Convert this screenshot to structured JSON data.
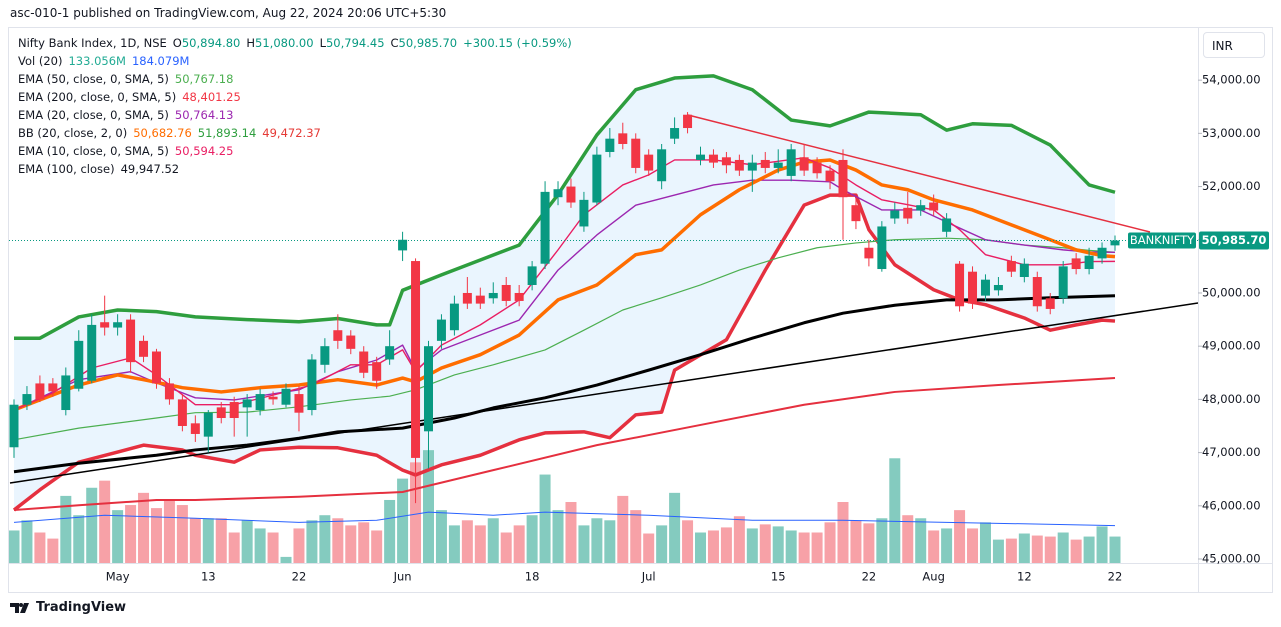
{
  "chart_data": {
    "type": "candlestick",
    "published": "asc-010-1 published on TradingView.com, Aug 22, 2024 20:06 UTC+5:30",
    "title": "Nifty Bank Index, 1D, NSE",
    "ohlc_legend": [
      {
        "key": "O",
        "value": "50,894.80"
      },
      {
        "key": "H",
        "value": "51,080.00"
      },
      {
        "key": "L",
        "value": "50,794.45"
      },
      {
        "key": "C",
        "value": "50,985.70"
      }
    ],
    "change": "+300.15 (+0.59%)",
    "currency": "INR",
    "footer": "TradingView",
    "legend": [
      {
        "name": "Vol (20)",
        "values": [
          {
            "text": "133.056M",
            "color": "#22ab94"
          },
          {
            "text": "184.079M",
            "color": "#2962ff"
          }
        ]
      },
      {
        "name": "EMA (50, close, 0, SMA, 5)",
        "values": [
          {
            "text": "50,767.18",
            "color": "#4caf50"
          }
        ]
      },
      {
        "name": "EMA (200, close, 0, SMA, 5)",
        "values": [
          {
            "text": "48,401.25",
            "color": "#f23645"
          }
        ]
      },
      {
        "name": "EMA (20, close, 0, SMA, 5)",
        "values": [
          {
            "text": "50,764.13",
            "color": "#9c27b0"
          }
        ]
      },
      {
        "name": "BB (20, close, 2, 0)",
        "values": [
          {
            "text": "50,682.76",
            "color": "#ff6d00"
          },
          {
            "text": "51,893.14",
            "color": "#2e9e3e"
          },
          {
            "text": "49,472.37",
            "color": "#e53935"
          }
        ]
      },
      {
        "name": "EMA (10, close, 0, SMA, 5)",
        "values": [
          {
            "text": "50,594.25",
            "color": "#e91e63"
          }
        ]
      },
      {
        "name": "EMA (100, close)",
        "values": [
          {
            "text": "49,947.52",
            "color": "#131722"
          }
        ]
      }
    ],
    "categories": [
      null,
      null,
      null,
      null,
      null,
      null,
      null,
      null,
      "May",
      null,
      null,
      null,
      null,
      null,
      null,
      "13",
      null,
      null,
      null,
      null,
      null,
      null,
      "22",
      null,
      null,
      null,
      null,
      null,
      null,
      null,
      "Jun",
      null,
      null,
      null,
      null,
      null,
      null,
      null,
      null,
      null,
      "18",
      null,
      null,
      null,
      null,
      null,
      null,
      null,
      null,
      "Jul",
      null,
      null,
      null,
      null,
      null,
      null,
      null,
      null,
      null,
      "15",
      null,
      null,
      null,
      null,
      null,
      null,
      "22",
      null,
      null,
      null,
      null,
      "Aug",
      null,
      null,
      null,
      null,
      null,
      null,
      "12",
      null,
      null,
      null,
      null,
      null,
      null,
      "22"
    ],
    "open": [
      47100,
      47900,
      48300,
      48300,
      47800,
      48200,
      48350,
      49450,
      49350,
      49500,
      49100,
      48900,
      48300,
      48000,
      47550,
      47300,
      47850,
      47950,
      47850,
      47800,
      48050,
      47900,
      48100,
      47800,
      48650,
      49300,
      49200,
      48900,
      48700,
      48750,
      50800,
      50600,
      47400,
      49100,
      49300,
      50000,
      49950,
      49900,
      50150,
      50000,
      50150,
      50550,
      51800,
      52000,
      51250,
      51700,
      52650,
      53000,
      52900,
      52600,
      52100,
      52900,
      53350,
      52500,
      52600,
      52550,
      52500,
      52300,
      52500,
      52350,
      52200,
      52550,
      52450,
      52300,
      52500,
      51650,
      50850,
      50450,
      51400,
      51600,
      51550,
      51700,
      51150,
      50550,
      50400,
      49950,
      50050,
      50600,
      50300,
      50300,
      49900,
      49900,
      50650,
      50450,
      50650,
      50894.8
    ],
    "high": [
      48000,
      48250,
      48450,
      48400,
      48600,
      49300,
      49600,
      49950,
      49600,
      49600,
      49200,
      48950,
      48400,
      48100,
      47700,
      47800,
      47950,
      48050,
      48100,
      48200,
      48150,
      48300,
      48250,
      48850,
      49150,
      49600,
      49300,
      49000,
      48800,
      49300,
      51150,
      50650,
      49100,
      49600,
      49950,
      50300,
      50100,
      50200,
      50300,
      50150,
      50600,
      52100,
      52100,
      52150,
      51900,
      52750,
      53100,
      53200,
      53000,
      52700,
      52800,
      53300,
      53400,
      52750,
      52700,
      52650,
      52600,
      52600,
      52650,
      52700,
      52800,
      52800,
      52550,
      52400,
      52700,
      51800,
      51000,
      51350,
      51700,
      51900,
      51750,
      51850,
      51500,
      50600,
      50500,
      50350,
      50300,
      50700,
      50650,
      50400,
      50000,
      50600,
      50750,
      50850,
      50950,
      51080
    ],
    "low": [
      46900,
      47800,
      47950,
      48050,
      47700,
      48150,
      48300,
      49200,
      49200,
      48500,
      48700,
      48200,
      47900,
      47400,
      47200,
      47000,
      47550,
      47300,
      47300,
      47700,
      47900,
      47850,
      47400,
      47700,
      48500,
      48950,
      48850,
      48400,
      48200,
      48650,
      50600,
      46050,
      46700,
      48950,
      49200,
      49700,
      49700,
      49800,
      49750,
      49750,
      50050,
      50450,
      51650,
      51600,
      51150,
      51650,
      52550,
      52700,
      52250,
      52200,
      51950,
      52800,
      53000,
      52400,
      52350,
      52250,
      52200,
      51900,
      52250,
      52250,
      52100,
      52200,
      52150,
      51950,
      51000,
      51200,
      50500,
      50400,
      51300,
      51300,
      51450,
      51450,
      51050,
      49650,
      49700,
      49850,
      49950,
      50300,
      50200,
      49650,
      49600,
      49800,
      50350,
      50350,
      50550,
      50794.45
    ],
    "close": [
      47900,
      48100,
      48000,
      48150,
      48450,
      49100,
      49400,
      49350,
      49450,
      48700,
      48800,
      48300,
      48000,
      47500,
      47350,
      47750,
      47650,
      47650,
      48000,
      48100,
      48000,
      48200,
      47750,
      48750,
      49000,
      49100,
      48950,
      48500,
      48350,
      49000,
      51000,
      46900,
      49000,
      49500,
      49800,
      49800,
      49800,
      50000,
      49850,
      49850,
      50500,
      51900,
      51950,
      51700,
      51750,
      52600,
      52900,
      52800,
      52350,
      52300,
      52700,
      53100,
      53100,
      52600,
      52450,
      52400,
      52300,
      52450,
      52350,
      52450,
      52700,
      52300,
      52250,
      52100,
      51800,
      51350,
      50650,
      51250,
      51550,
      51400,
      51650,
      51550,
      51400,
      49750,
      49800,
      50250,
      50150,
      50400,
      50550,
      49750,
      49700,
      50500,
      50450,
      50700,
      50850,
      50985.7
    ],
    "up_color": "#089981",
    "down_color": "#f23645",
    "volume": {
      "values": [
        160,
        210,
        150,
        120,
        330,
        235,
        370,
        405,
        260,
        285,
        345,
        270,
        310,
        285,
        220,
        220,
        220,
        150,
        210,
        170,
        150,
        30,
        170,
        210,
        235,
        220,
        185,
        200,
        160,
        310,
        415,
        495,
        555,
        260,
        185,
        210,
        185,
        220,
        150,
        185,
        235,
        435,
        260,
        300,
        185,
        220,
        210,
        330,
        260,
        145,
        185,
        345,
        210,
        150,
        160,
        175,
        230,
        170,
        190,
        180,
        160,
        150,
        150,
        200,
        300,
        210,
        195,
        220,
        515,
        235,
        220,
        160,
        170,
        260,
        170,
        200,
        115,
        120,
        145,
        135,
        130,
        150,
        115,
        130,
        180,
        130
      ],
      "up_color": "#84cbbf",
      "down_color": "#f7a1a7"
    },
    "ylim": [
      44925,
      54980
    ],
    "y2lim": [
      0,
      600
    ],
    "yticks": [
      {
        "value": 45000,
        "label": "45,000.00"
      },
      {
        "value": 46000,
        "label": "46,000.00"
      },
      {
        "value": 47000,
        "label": "47,000.00"
      },
      {
        "value": 48000,
        "label": "48,000.00"
      },
      {
        "value": 49000,
        "label": "49,000.00"
      },
      {
        "value": 50000,
        "label": "50,000.00"
      },
      {
        "value": 51000,
        "label": "51,000.00"
      },
      {
        "value": 52000,
        "label": "52,000.00"
      },
      {
        "value": 53000,
        "label": "53,000.00"
      },
      {
        "value": 54000,
        "label": "54,000.00"
      }
    ],
    "last_price": {
      "symbol": "BANKNIFTY",
      "value": 50985.7,
      "label": "50,985.70",
      "color": "#089981"
    },
    "band_fill": "#e3f2fd",
    "series": [
      {
        "role": "upper",
        "color": "#2e9e3e",
        "width": 3.5,
        "x": [
          0,
          2,
          5,
          8,
          11,
          14,
          18,
          22,
          25,
          28,
          29,
          30,
          33,
          36,
          39,
          42,
          45,
          48,
          51,
          54,
          57,
          60,
          63,
          66,
          70,
          72,
          74,
          77,
          80,
          83,
          85
        ],
        "values": [
          49150,
          49150,
          49550,
          49680,
          49650,
          49550,
          49500,
          49460,
          49520,
          49400,
          49400,
          50050,
          50340,
          50620,
          50900,
          51850,
          52970,
          53820,
          54040,
          54080,
          53820,
          53250,
          53140,
          53400,
          53350,
          53060,
          53180,
          53150,
          52780,
          52030,
          51893
        ]
      },
      {
        "role": "lower",
        "color": "#e5303f",
        "width": 3.5,
        "x": [
          0,
          2,
          5,
          8,
          10,
          13,
          14,
          17,
          19,
          22,
          25,
          28,
          30,
          31,
          33,
          36,
          39,
          41,
          44,
          46,
          48,
          50,
          51,
          55,
          58,
          61,
          63,
          65,
          66,
          68,
          71,
          73,
          75,
          78,
          80,
          82,
          84,
          85
        ],
        "values": [
          45920,
          46300,
          46820,
          47010,
          47140,
          47050,
          46950,
          46820,
          47050,
          47100,
          47090,
          46950,
          46670,
          46580,
          46770,
          46950,
          47240,
          47370,
          47390,
          47280,
          47710,
          47760,
          48550,
          49120,
          50430,
          51650,
          51840,
          51840,
          51190,
          50530,
          50060,
          49870,
          49780,
          49530,
          49300,
          49400,
          49490,
          49472
        ]
      },
      {
        "color": "#4caf50",
        "width": 1.2,
        "x": [
          0,
          5,
          11,
          14,
          18,
          22,
          26,
          29,
          31,
          34,
          37,
          41,
          44,
          47,
          50,
          53,
          56,
          59,
          62,
          65,
          68,
          72,
          75,
          78,
          81,
          83,
          85
        ],
        "values": [
          47240,
          47460,
          47650,
          47750,
          47760,
          47860,
          47990,
          48060,
          48180,
          48460,
          48650,
          48930,
          49300,
          49680,
          49910,
          50150,
          50430,
          50660,
          50850,
          50940,
          51000,
          51030,
          51000,
          50900,
          50850,
          50800,
          50767
        ]
      },
      {
        "color": "#e5303f",
        "width": 2,
        "x": [
          0,
          5,
          11,
          14,
          22,
          30,
          37,
          45,
          53,
          61,
          68,
          76,
          85
        ],
        "values": [
          45920,
          46010,
          46110,
          46110,
          46170,
          46260,
          46670,
          47140,
          47520,
          47900,
          48140,
          48270,
          48401
        ]
      },
      {
        "color": "#9c27b0",
        "width": 1.4,
        "x": [
          0,
          5,
          9,
          11,
          14,
          17,
          22,
          25,
          28,
          30,
          31,
          33,
          36,
          39,
          42,
          45,
          48,
          51,
          54,
          57,
          60,
          63,
          64,
          67,
          70,
          73,
          75,
          78,
          81,
          83,
          85
        ],
        "values": [
          47800,
          48370,
          48520,
          48310,
          48030,
          47990,
          48180,
          48520,
          48740,
          49020,
          48550,
          48930,
          49210,
          49490,
          50430,
          51090,
          51650,
          51840,
          52030,
          52120,
          52120,
          52090,
          51940,
          51560,
          51560,
          51220,
          51000,
          50900,
          50810,
          50770,
          50764
        ]
      },
      {
        "color": "#ff6d00",
        "width": 3.5,
        "x": [
          0,
          2,
          5,
          8,
          10,
          13,
          16,
          19,
          22,
          25,
          28,
          30,
          31,
          33,
          36,
          39,
          42,
          45,
          48,
          50,
          53,
          56,
          59,
          61,
          63,
          65,
          67,
          69,
          71,
          74,
          77,
          80,
          82,
          84,
          85
        ],
        "values": [
          47800,
          47990,
          48270,
          48460,
          48370,
          48220,
          48140,
          48220,
          48270,
          48370,
          48270,
          48400,
          48330,
          48590,
          48840,
          49210,
          49870,
          50150,
          50720,
          50810,
          51470,
          51940,
          52310,
          52460,
          52500,
          52310,
          52030,
          51940,
          51750,
          51560,
          51280,
          51000,
          50810,
          50700,
          50683
        ]
      },
      {
        "color": "#e91e63",
        "width": 1.4,
        "x": [
          0,
          3,
          6,
          9,
          11,
          14,
          17,
          20,
          23,
          26,
          28,
          30,
          31,
          33,
          36,
          39,
          42,
          44,
          47,
          49,
          51,
          54,
          57,
          61,
          63,
          65,
          67,
          69,
          71,
          73,
          75,
          78,
          81,
          83,
          85
        ],
        "values": [
          47800,
          48120,
          48590,
          48780,
          48460,
          47900,
          47900,
          48080,
          48270,
          48650,
          48650,
          48930,
          48520,
          49020,
          49400,
          49870,
          50810,
          51470,
          52030,
          52220,
          52500,
          52500,
          52410,
          52540,
          52350,
          52030,
          51750,
          51660,
          51560,
          51190,
          50720,
          50530,
          50530,
          50590,
          50594
        ]
      },
      {
        "color": "#000000",
        "width": 3,
        "x": [
          0,
          5,
          11,
          14,
          18,
          22,
          25,
          30,
          34,
          37,
          41,
          45,
          49,
          53,
          57,
          61,
          64,
          68,
          72,
          76,
          80,
          85
        ],
        "values": [
          46640,
          46800,
          46950,
          47050,
          47140,
          47270,
          47390,
          47460,
          47650,
          47840,
          48030,
          48270,
          48550,
          48840,
          49150,
          49440,
          49620,
          49770,
          49870,
          49870,
          49910,
          49948
        ]
      },
      {
        "axis": "y2",
        "color": "#2962ff",
        "width": 1,
        "x": [
          0,
          7,
          14,
          22,
          28,
          32,
          37,
          41,
          49,
          57,
          64,
          72,
          85
        ],
        "values": [
          200,
          235,
          220,
          200,
          210,
          250,
          235,
          250,
          235,
          210,
          210,
          200,
          184
        ]
      }
    ]
  }
}
